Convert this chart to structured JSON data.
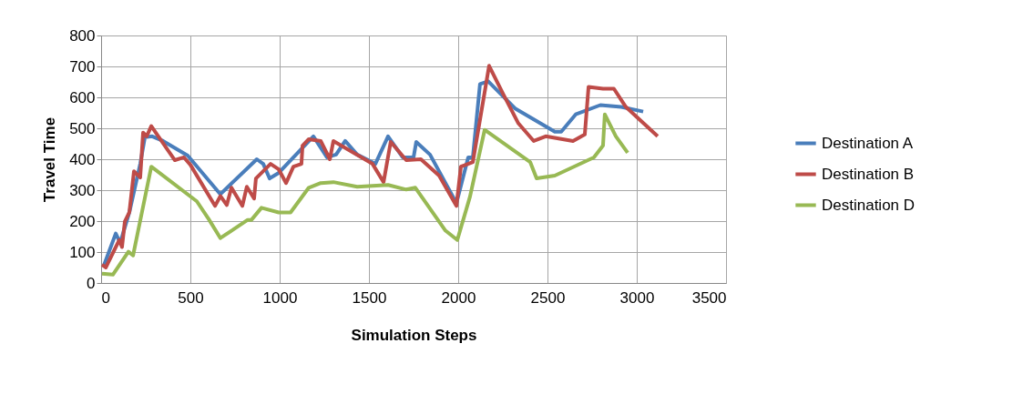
{
  "chart_data": {
    "type": "line",
    "xlabel": "Simulation Steps",
    "ylabel": "Travel Time",
    "xlim": [
      0,
      3500
    ],
    "xticks": [
      0,
      500,
      1000,
      1500,
      2000,
      2500,
      3000,
      3500
    ],
    "ylim": [
      0,
      800
    ],
    "yticks": [
      0,
      100,
      200,
      300,
      400,
      500,
      600,
      700,
      800
    ],
    "grid": true,
    "legend": "right",
    "line_style": "solid",
    "series": [
      {
        "name": "Destination A",
        "color": "#4a7ebb",
        "x": [
          15,
          82,
          107,
          158,
          219,
          245,
          286,
          347,
          485,
          668,
          872,
          908,
          944,
          995,
          1189,
          1265,
          1316,
          1367,
          1434,
          1536,
          1607,
          1689,
          1750,
          1765,
          1842,
          1990,
          2056,
          2082,
          2122,
          2168,
          2321,
          2541,
          2577,
          2658,
          2796,
          2913,
          3036
        ],
        "values": [
          56,
          160,
          130,
          228,
          385,
          471,
          474,
          459,
          412,
          287,
          400,
          385,
          338,
          356,
          474,
          406,
          415,
          459,
          415,
          385,
          474,
          406,
          406,
          456,
          415,
          258,
          406,
          406,
          643,
          652,
          563,
          489,
          489,
          545,
          575,
          569,
          554
        ]
      },
      {
        "name": "Destination B",
        "color": "#be4b48",
        "x": [
          5,
          26,
          102,
          117,
          133,
          158,
          184,
          219,
          235,
          255,
          281,
          413,
          464,
          500,
          638,
          668,
          704,
          730,
          791,
          816,
          857,
          867,
          949,
          995,
          1036,
          1077,
          1122,
          1128,
          1163,
          1230,
          1281,
          1301,
          1520,
          1582,
          1622,
          1709,
          1791,
          1893,
          1990,
          2015,
          2082,
          2173,
          2250,
          2337,
          2423,
          2490,
          2643,
          2709,
          2730,
          2811,
          2872,
          2939,
          3117
        ],
        "values": [
          59,
          50,
          139,
          116,
          199,
          228,
          361,
          341,
          486,
          474,
          507,
          397,
          406,
          382,
          249,
          281,
          252,
          308,
          249,
          311,
          273,
          338,
          385,
          367,
          323,
          376,
          385,
          444,
          465,
          459,
          400,
          459,
          385,
          326,
          456,
          397,
          400,
          347,
          249,
          376,
          391,
          702,
          613,
          516,
          459,
          474,
          459,
          480,
          634,
          628,
          628,
          569,
          474
        ]
      },
      {
        "name": "Destination D",
        "color": "#98b954",
        "x": [
          5,
          66,
          153,
          179,
          281,
          536,
          602,
          668,
          821,
          842,
          898,
          995,
          1061,
          1163,
          1230,
          1301,
          1434,
          1607,
          1709,
          1760,
          1929,
          1995,
          2066,
          2148,
          2403,
          2439,
          2541,
          2760,
          2811,
          2821,
          2883,
          2949
        ],
        "values": [
          30,
          27,
          101,
          89,
          376,
          264,
          207,
          145,
          204,
          204,
          243,
          228,
          228,
          308,
          323,
          326,
          311,
          317,
          302,
          308,
          169,
          139,
          279,
          495,
          391,
          338,
          347,
          406,
          444,
          545,
          474,
          421
        ]
      }
    ]
  }
}
